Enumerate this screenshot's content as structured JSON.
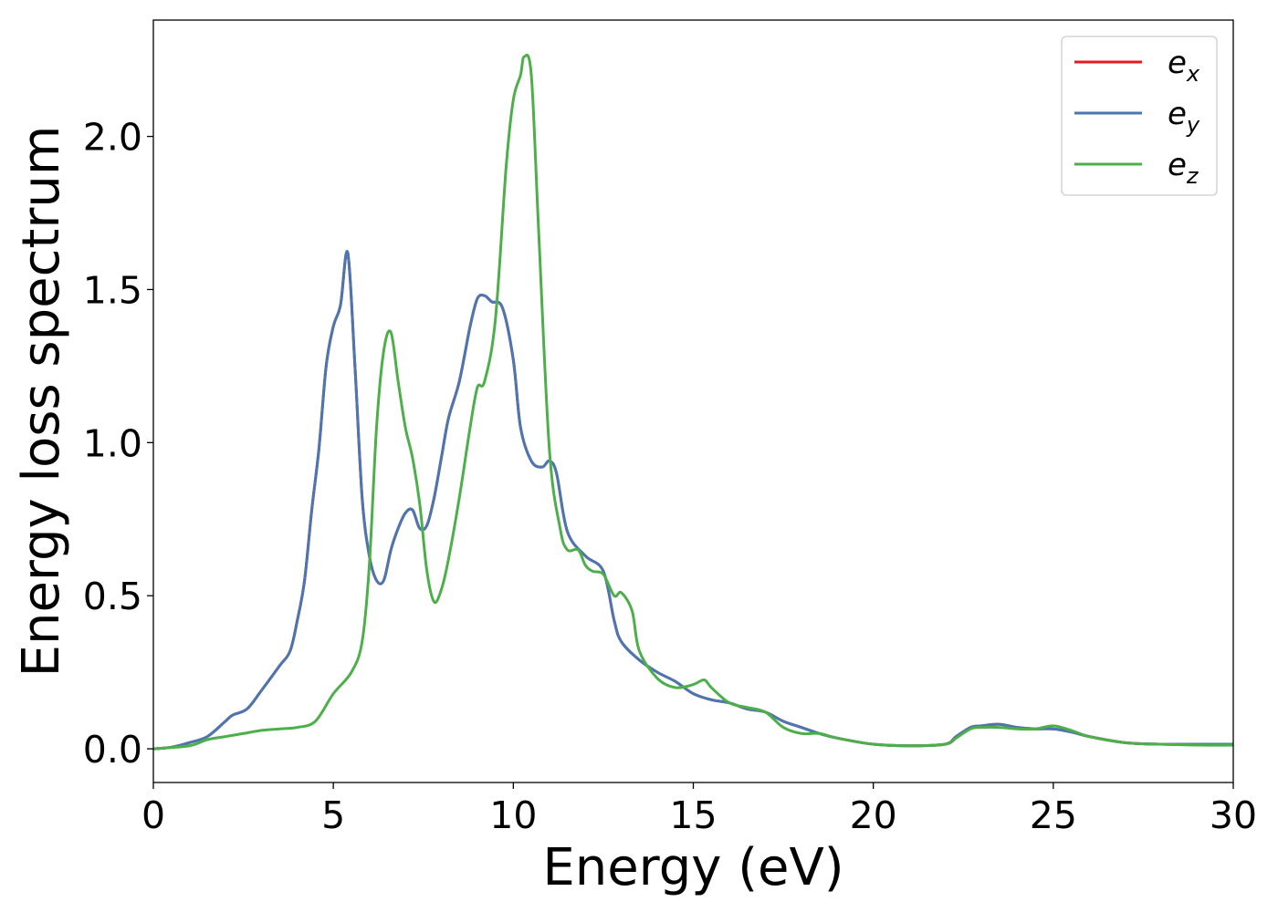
{
  "chart_data": {
    "type": "line",
    "title": "",
    "xlabel": "Energy (eV)",
    "ylabel": "Energy loss spectrum",
    "xlim": [
      0,
      30
    ],
    "ylim": [
      -0.11,
      2.38
    ],
    "x_ticks": [
      0,
      5,
      10,
      15,
      20,
      25,
      30
    ],
    "x_tick_labels": [
      "0",
      "5",
      "10",
      "15",
      "20",
      "25",
      "30"
    ],
    "y_ticks": [
      0.0,
      0.5,
      1.0,
      1.5,
      2.0
    ],
    "y_tick_labels": [
      "0.0",
      "0.5",
      "1.0",
      "1.5",
      "2.0"
    ],
    "grid": false,
    "legend_position": "top-right",
    "series": [
      {
        "name": "e_x",
        "label_base": "e",
        "label_sub": "x",
        "color": "#e41a1c",
        "x": [
          0,
          0.5,
          1.0,
          1.5,
          2.0,
          2.2,
          2.6,
          3.0,
          3.5,
          3.8,
          4.0,
          4.2,
          4.4,
          4.6,
          4.8,
          5.0,
          5.2,
          5.4,
          5.6,
          5.8,
          6.0,
          6.2,
          6.4,
          6.6,
          6.8,
          7.0,
          7.2,
          7.4,
          7.6,
          7.8,
          8.0,
          8.2,
          8.5,
          8.8,
          9.0,
          9.2,
          9.4,
          9.7,
          10.0,
          10.2,
          10.5,
          10.8,
          11.0,
          11.2,
          11.5,
          12.0,
          12.5,
          12.8,
          13.0,
          13.5,
          14.0,
          14.5,
          15.0,
          15.5,
          16.0,
          16.5,
          17.0,
          17.5,
          18.0,
          18.5,
          19.0,
          20.0,
          21.0,
          22.0,
          22.3,
          22.7,
          23.0,
          23.5,
          24.0,
          24.5,
          25.0,
          25.5,
          26.0,
          27.0,
          28.0,
          29.0,
          30.0
        ],
        "y": [
          0.0,
          0.005,
          0.02,
          0.04,
          0.09,
          0.11,
          0.13,
          0.19,
          0.27,
          0.32,
          0.42,
          0.55,
          0.78,
          0.98,
          1.25,
          1.38,
          1.45,
          1.62,
          1.25,
          0.82,
          0.63,
          0.55,
          0.55,
          0.65,
          0.72,
          0.77,
          0.78,
          0.72,
          0.73,
          0.82,
          0.95,
          1.08,
          1.2,
          1.38,
          1.47,
          1.48,
          1.46,
          1.44,
          1.27,
          1.05,
          0.94,
          0.92,
          0.94,
          0.9,
          0.71,
          0.63,
          0.58,
          0.42,
          0.35,
          0.29,
          0.25,
          0.22,
          0.18,
          0.16,
          0.15,
          0.13,
          0.12,
          0.09,
          0.07,
          0.05,
          0.035,
          0.015,
          0.01,
          0.015,
          0.04,
          0.07,
          0.075,
          0.08,
          0.07,
          0.065,
          0.065,
          0.055,
          0.04,
          0.02,
          0.015,
          0.015,
          0.015
        ]
      },
      {
        "name": "e_y",
        "label_base": "e",
        "label_sub": "y",
        "color": "#4a77b2",
        "x": [
          0,
          0.5,
          1.0,
          1.5,
          2.0,
          2.2,
          2.6,
          3.0,
          3.5,
          3.8,
          4.0,
          4.2,
          4.4,
          4.6,
          4.8,
          5.0,
          5.2,
          5.4,
          5.6,
          5.8,
          6.0,
          6.2,
          6.4,
          6.6,
          6.8,
          7.0,
          7.2,
          7.4,
          7.6,
          7.8,
          8.0,
          8.2,
          8.5,
          8.8,
          9.0,
          9.2,
          9.4,
          9.7,
          10.0,
          10.2,
          10.5,
          10.8,
          11.0,
          11.2,
          11.5,
          12.0,
          12.5,
          12.8,
          13.0,
          13.5,
          14.0,
          14.5,
          15.0,
          15.5,
          16.0,
          16.5,
          17.0,
          17.5,
          18.0,
          18.5,
          19.0,
          20.0,
          21.0,
          22.0,
          22.3,
          22.7,
          23.0,
          23.5,
          24.0,
          24.5,
          25.0,
          25.5,
          26.0,
          27.0,
          28.0,
          29.0,
          30.0
        ],
        "y": [
          0.0,
          0.005,
          0.02,
          0.04,
          0.09,
          0.11,
          0.13,
          0.19,
          0.27,
          0.32,
          0.42,
          0.55,
          0.78,
          0.98,
          1.25,
          1.38,
          1.45,
          1.62,
          1.25,
          0.82,
          0.63,
          0.55,
          0.55,
          0.65,
          0.72,
          0.77,
          0.78,
          0.72,
          0.73,
          0.82,
          0.95,
          1.08,
          1.2,
          1.38,
          1.47,
          1.48,
          1.46,
          1.44,
          1.27,
          1.05,
          0.94,
          0.92,
          0.94,
          0.9,
          0.71,
          0.63,
          0.58,
          0.42,
          0.35,
          0.29,
          0.25,
          0.22,
          0.18,
          0.16,
          0.15,
          0.13,
          0.12,
          0.09,
          0.07,
          0.05,
          0.035,
          0.015,
          0.01,
          0.015,
          0.04,
          0.07,
          0.075,
          0.08,
          0.07,
          0.065,
          0.065,
          0.055,
          0.04,
          0.02,
          0.015,
          0.015,
          0.015
        ]
      },
      {
        "name": "e_z",
        "label_base": "e",
        "label_sub": "z",
        "color": "#4daf4a",
        "x": [
          0,
          1.0,
          1.5,
          2.0,
          2.5,
          3.0,
          3.5,
          4.0,
          4.5,
          5.0,
          5.5,
          5.8,
          6.0,
          6.2,
          6.4,
          6.6,
          6.8,
          7.0,
          7.2,
          7.4,
          7.6,
          7.8,
          8.0,
          8.2,
          8.5,
          8.8,
          9.0,
          9.2,
          9.5,
          9.8,
          10.0,
          10.2,
          10.3,
          10.5,
          10.7,
          11.0,
          11.3,
          11.5,
          11.8,
          12.0,
          12.2,
          12.5,
          12.8,
          13.0,
          13.3,
          13.5,
          14.0,
          14.5,
          15.0,
          15.3,
          15.5,
          16.0,
          16.5,
          17.0,
          17.5,
          18.0,
          18.5,
          19.0,
          20.0,
          21.0,
          22.0,
          22.3,
          22.7,
          23.0,
          23.5,
          24.0,
          24.5,
          25.0,
          25.5,
          26.0,
          27.0,
          28.0,
          29.0,
          30.0
        ],
        "y": [
          0.0,
          0.01,
          0.03,
          0.04,
          0.05,
          0.06,
          0.065,
          0.07,
          0.09,
          0.18,
          0.25,
          0.35,
          0.6,
          1.05,
          1.3,
          1.36,
          1.2,
          1.05,
          0.95,
          0.8,
          0.58,
          0.48,
          0.52,
          0.62,
          0.82,
          1.05,
          1.18,
          1.2,
          1.4,
          1.9,
          2.12,
          2.2,
          2.26,
          2.2,
          1.7,
          0.98,
          0.72,
          0.65,
          0.65,
          0.6,
          0.58,
          0.57,
          0.5,
          0.51,
          0.45,
          0.32,
          0.23,
          0.2,
          0.21,
          0.225,
          0.2,
          0.15,
          0.135,
          0.12,
          0.07,
          0.05,
          0.05,
          0.035,
          0.015,
          0.01,
          0.015,
          0.035,
          0.065,
          0.07,
          0.07,
          0.065,
          0.065,
          0.075,
          0.06,
          0.04,
          0.02,
          0.015,
          0.012,
          0.012
        ]
      }
    ]
  }
}
